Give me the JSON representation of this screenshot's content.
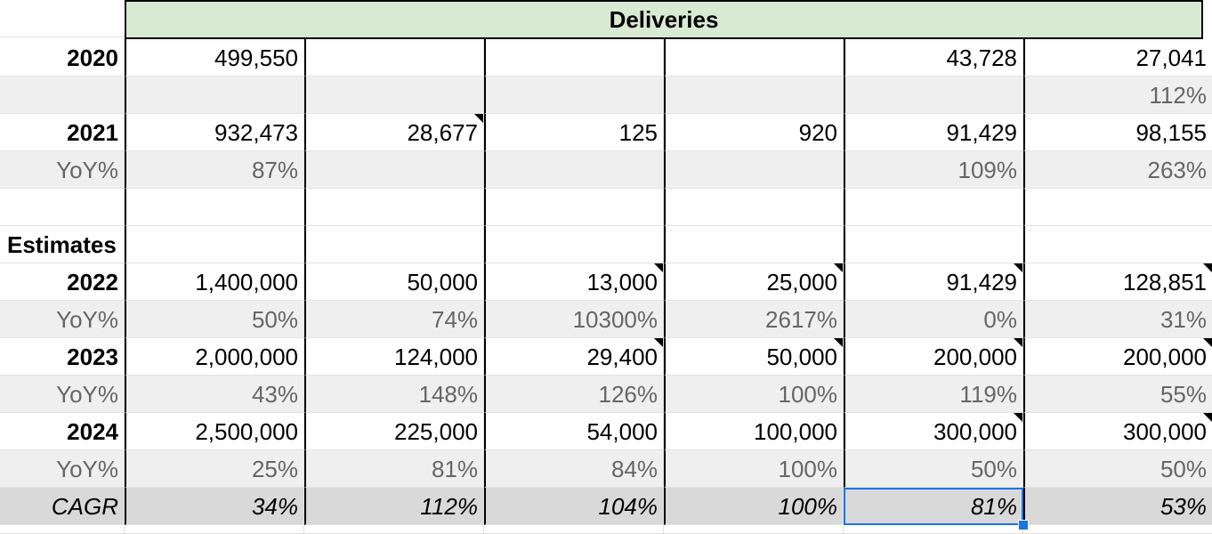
{
  "header": {
    "deliveries_label": "Deliveries"
  },
  "rows": [
    {
      "label": "2020",
      "values": [
        "499,550",
        "",
        "",
        "",
        "43,728",
        "27,041"
      ]
    },
    {
      "label": "",
      "values": [
        "",
        "",
        "",
        "",
        "",
        "112%"
      ]
    },
    {
      "label": "2021",
      "values": [
        "932,473",
        "28,677",
        "125",
        "920",
        "91,429",
        "98,155"
      ]
    },
    {
      "label": "YoY%",
      "values": [
        "87%",
        "",
        "",
        "",
        "109%",
        "263%"
      ]
    },
    {
      "label": "",
      "values": [
        "",
        "",
        "",
        "",
        "",
        ""
      ]
    },
    {
      "label": "Estimates",
      "values": [
        "",
        "",
        "",
        "",
        "",
        ""
      ]
    },
    {
      "label": "2022",
      "values": [
        "1,400,000",
        "50,000",
        "13,000",
        "25,000",
        "91,429",
        "128,851"
      ]
    },
    {
      "label": "YoY%",
      "values": [
        "50%",
        "74%",
        "10300%",
        "2617%",
        "0%",
        "31%"
      ]
    },
    {
      "label": "2023",
      "values": [
        "2,000,000",
        "124,000",
        "29,400",
        "50,000",
        "200,000",
        "200,000"
      ]
    },
    {
      "label": "YoY%",
      "values": [
        "43%",
        "148%",
        "126%",
        "100%",
        "119%",
        "55%"
      ]
    },
    {
      "label": "2024",
      "values": [
        "2,500,000",
        "225,000",
        "54,000",
        "100,000",
        "300,000",
        "300,000"
      ]
    },
    {
      "label": "YoY%",
      "values": [
        "25%",
        "81%",
        "84%",
        "100%",
        "50%",
        "50%"
      ]
    },
    {
      "label": "CAGR",
      "values": [
        "34%",
        "112%",
        "104%",
        "100%",
        "81%",
        "53%"
      ]
    }
  ],
  "colors": {
    "header_bg": "#d9ead3",
    "yoy_bg": "#efefef",
    "cagr_bg": "#d9d9d9",
    "selection": "#1a73e8"
  }
}
